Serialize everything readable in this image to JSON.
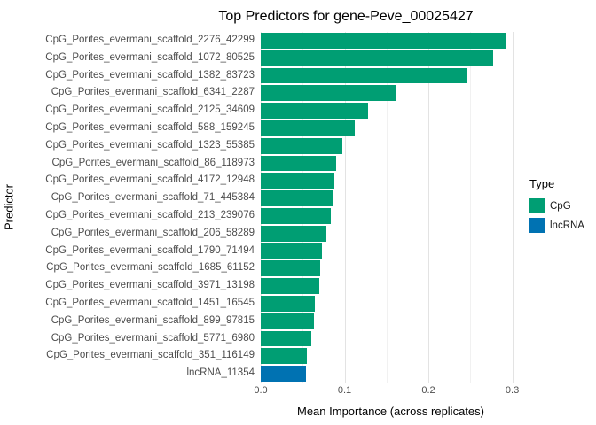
{
  "chart_data": {
    "type": "bar",
    "orientation": "horizontal",
    "title": "Top Predictors for gene-Peve_00025427",
    "xlabel": "Mean Importance (across replicates)",
    "ylabel": "Predictor",
    "xlim": [
      0,
      0.31
    ],
    "xticks": [
      0,
      0.1,
      0.2,
      0.3
    ],
    "xtick_labels": [
      "0.0",
      "0.1",
      "0.2",
      "0.3"
    ],
    "minor_ticks": [
      0.05,
      0.15,
      0.25
    ],
    "grid": true,
    "colors": {
      "CpG": "#009E73",
      "lncRNA": "#0072B2"
    },
    "legend": {
      "title": "Type",
      "position": "right",
      "entries": [
        {
          "label": "CpG",
          "color": "#009E73"
        },
        {
          "label": "lncRNA",
          "color": "#0072B2"
        }
      ]
    },
    "bars": [
      {
        "label": "CpG_Porites_evermani_scaffold_2276_42299",
        "value": 0.293,
        "type": "CpG"
      },
      {
        "label": "CpG_Porites_evermani_scaffold_1072_80525",
        "value": 0.277,
        "type": "CpG"
      },
      {
        "label": "CpG_Porites_evermani_scaffold_1382_83723",
        "value": 0.246,
        "type": "CpG"
      },
      {
        "label": "CpG_Porites_evermani_scaffold_6341_2287",
        "value": 0.161,
        "type": "CpG"
      },
      {
        "label": "CpG_Porites_evermani_scaffold_2125_34609",
        "value": 0.128,
        "type": "CpG"
      },
      {
        "label": "CpG_Porites_evermani_scaffold_588_159245",
        "value": 0.112,
        "type": "CpG"
      },
      {
        "label": "CpG_Porites_evermani_scaffold_1323_55385",
        "value": 0.097,
        "type": "CpG"
      },
      {
        "label": "CpG_Porites_evermani_scaffold_86_118973",
        "value": 0.09,
        "type": "CpG"
      },
      {
        "label": "CpG_Porites_evermani_scaffold_4172_12948",
        "value": 0.088,
        "type": "CpG"
      },
      {
        "label": "CpG_Porites_evermani_scaffold_71_445384",
        "value": 0.086,
        "type": "CpG"
      },
      {
        "label": "CpG_Porites_evermani_scaffold_213_239076",
        "value": 0.084,
        "type": "CpG"
      },
      {
        "label": "CpG_Porites_evermani_scaffold_206_58289",
        "value": 0.078,
        "type": "CpG"
      },
      {
        "label": "CpG_Porites_evermani_scaffold_1790_71494",
        "value": 0.073,
        "type": "CpG"
      },
      {
        "label": "CpG_Porites_evermani_scaffold_1685_61152",
        "value": 0.071,
        "type": "CpG"
      },
      {
        "label": "CpG_Porites_evermani_scaffold_3971_13198",
        "value": 0.07,
        "type": "CpG"
      },
      {
        "label": "CpG_Porites_evermani_scaffold_1451_16545",
        "value": 0.065,
        "type": "CpG"
      },
      {
        "label": "CpG_Porites_evermani_scaffold_899_97815",
        "value": 0.063,
        "type": "CpG"
      },
      {
        "label": "CpG_Porites_evermani_scaffold_5771_6980",
        "value": 0.06,
        "type": "CpG"
      },
      {
        "label": "CpG_Porites_evermani_scaffold_351_116149",
        "value": 0.055,
        "type": "CpG"
      },
      {
        "label": "lncRNA_11354",
        "value": 0.054,
        "type": "lncRNA"
      }
    ]
  }
}
